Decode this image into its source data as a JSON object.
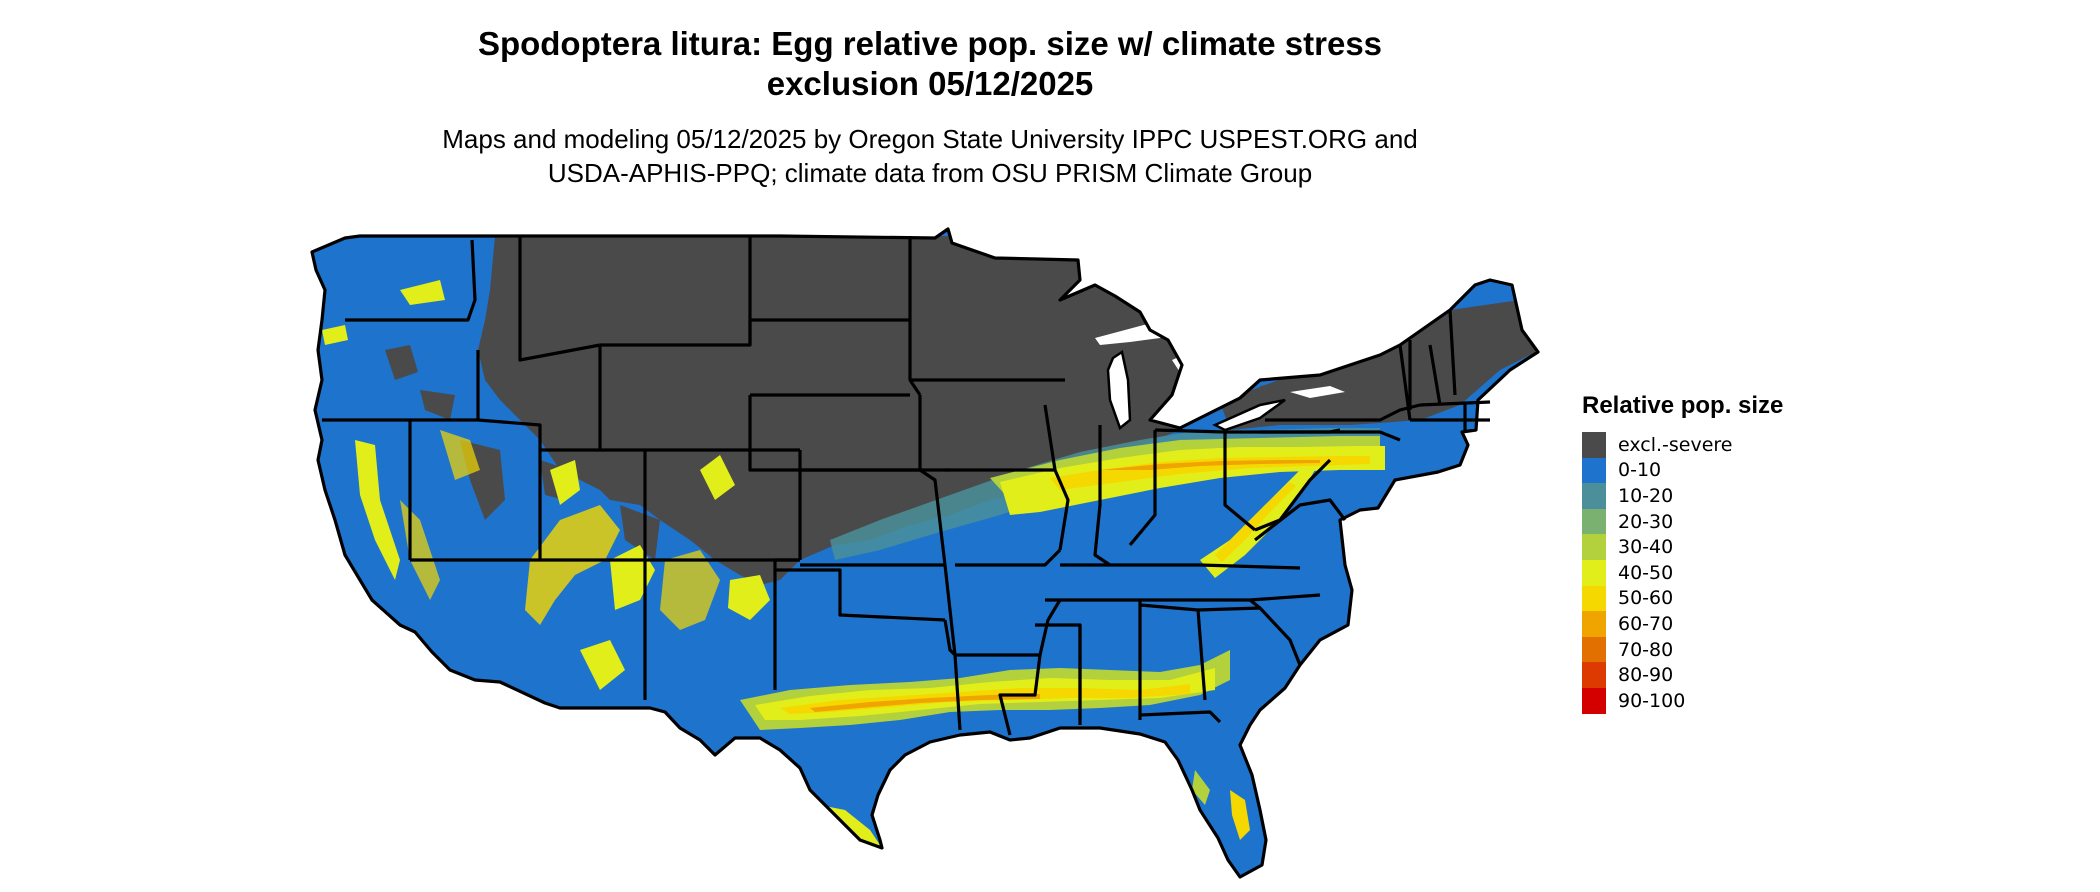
{
  "title": {
    "line1": "Spodoptera litura: Egg relative pop. size w/ climate stress",
    "line2": "exclusion 05/12/2025"
  },
  "subtitle": {
    "line1": "Maps and modeling 05/12/2025 by Oregon State University IPPC USPEST.ORG and",
    "line2": "USDA-APHIS-PPQ; climate data from OSU PRISM Climate Group"
  },
  "legend": {
    "title": "Relative pop. size",
    "items": [
      {
        "label": "excl.-severe",
        "color": "#4a4a4a"
      },
      {
        "label": "0-10",
        "color": "#1e73cd"
      },
      {
        "label": "10-20",
        "color": "#4a8f9a"
      },
      {
        "label": "20-30",
        "color": "#7ab070"
      },
      {
        "label": "30-40",
        "color": "#b3d13c"
      },
      {
        "label": "40-50",
        "color": "#e2ee1a"
      },
      {
        "label": "50-60",
        "color": "#f5d800"
      },
      {
        "label": "60-70",
        "color": "#efa400"
      },
      {
        "label": "70-80",
        "color": "#e27000"
      },
      {
        "label": "80-90",
        "color": "#dc3a00"
      },
      {
        "label": "90-100",
        "color": "#d40000"
      }
    ]
  }
}
